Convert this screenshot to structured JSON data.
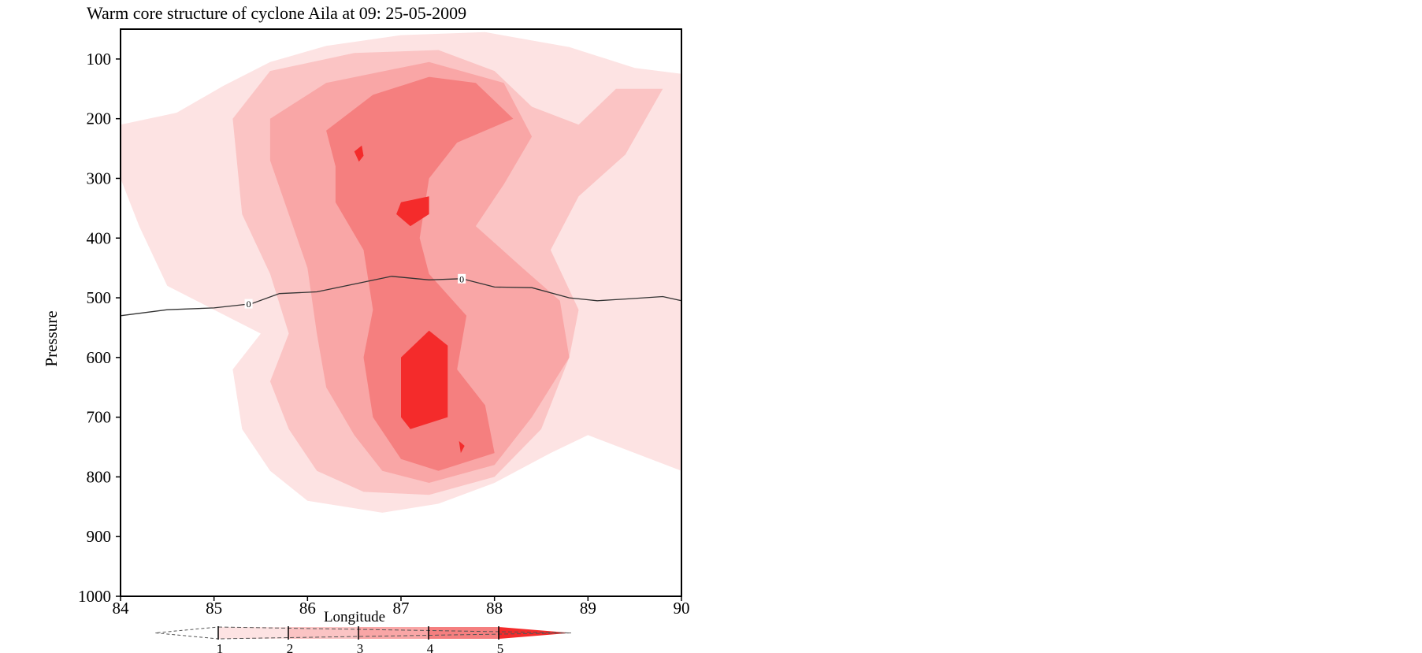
{
  "chart_data": {
    "type": "heatmap",
    "title": "Warm core structure of cyclone Aila at 09: 25-05-2009",
    "xlabel": "Longitude",
    "ylabel": "Pressure",
    "xlim": [
      84,
      90
    ],
    "ylim": [
      1000,
      50
    ],
    "x_ticks": [
      84,
      85,
      86,
      87,
      88,
      89,
      90
    ],
    "y_ticks": [
      100,
      200,
      300,
      400,
      500,
      600,
      700,
      800,
      900,
      1000
    ],
    "y_reversed": true,
    "grid": false,
    "colorbar": {
      "position": "bottom",
      "levels": [
        1,
        2,
        3,
        4,
        5
      ],
      "colors": [
        "#fde3e3",
        "#fbc4c4",
        "#f9a6a6",
        "#f57f7f",
        "#f42b2b"
      ]
    },
    "contour_labels": [
      {
        "text": "0",
        "x": 85.37,
        "p": 510
      },
      {
        "text": "0",
        "x": 87.65,
        "p": 468
      }
    ],
    "filled_regions": [
      {
        "level": 1,
        "points": [
          [
            84,
            210
          ],
          [
            84.6,
            190
          ],
          [
            85.1,
            145
          ],
          [
            85.6,
            105
          ],
          [
            86.2,
            78
          ],
          [
            87.0,
            60
          ],
          [
            87.9,
            55
          ],
          [
            88.8,
            80
          ],
          [
            89.5,
            115
          ],
          [
            90,
            125
          ],
          [
            90,
            790
          ],
          [
            89.0,
            730
          ],
          [
            88.6,
            760
          ],
          [
            88.0,
            810
          ],
          [
            87.4,
            845
          ],
          [
            86.8,
            860
          ],
          [
            86.0,
            840
          ],
          [
            85.6,
            790
          ],
          [
            85.3,
            720
          ],
          [
            85.2,
            620
          ],
          [
            85.5,
            560
          ],
          [
            85.0,
            520
          ],
          [
            84.5,
            480
          ],
          [
            84.2,
            380
          ],
          [
            84,
            300
          ]
        ]
      },
      {
        "level": 2,
        "points": [
          [
            85.2,
            200
          ],
          [
            85.6,
            120
          ],
          [
            86.5,
            90
          ],
          [
            87.4,
            85
          ],
          [
            88.0,
            120
          ],
          [
            88.4,
            180
          ],
          [
            88.9,
            210
          ],
          [
            89.3,
            150
          ],
          [
            89.8,
            150
          ],
          [
            89.4,
            260
          ],
          [
            88.9,
            330
          ],
          [
            88.6,
            420
          ],
          [
            88.9,
            520
          ],
          [
            88.8,
            600
          ],
          [
            88.5,
            720
          ],
          [
            88.0,
            800
          ],
          [
            87.3,
            830
          ],
          [
            86.6,
            825
          ],
          [
            86.1,
            790
          ],
          [
            85.8,
            720
          ],
          [
            85.6,
            640
          ],
          [
            85.8,
            560
          ],
          [
            85.6,
            460
          ],
          [
            85.3,
            360
          ]
        ]
      },
      {
        "level": 3,
        "points": [
          [
            85.6,
            200
          ],
          [
            86.2,
            140
          ],
          [
            87.3,
            105
          ],
          [
            88.1,
            140
          ],
          [
            88.4,
            230
          ],
          [
            88.1,
            310
          ],
          [
            87.8,
            380
          ],
          [
            88.3,
            450
          ],
          [
            88.7,
            505
          ],
          [
            88.8,
            600
          ],
          [
            88.4,
            700
          ],
          [
            88.0,
            780
          ],
          [
            87.3,
            810
          ],
          [
            86.8,
            790
          ],
          [
            86.5,
            730
          ],
          [
            86.2,
            650
          ],
          [
            86.1,
            560
          ],
          [
            86.0,
            450
          ],
          [
            85.8,
            360
          ],
          [
            85.6,
            270
          ]
        ]
      },
      {
        "level": 4,
        "points": [
          [
            86.2,
            220
          ],
          [
            86.7,
            160
          ],
          [
            87.3,
            130
          ],
          [
            87.8,
            140
          ],
          [
            88.2,
            200
          ],
          [
            87.6,
            240
          ],
          [
            87.3,
            300
          ],
          [
            87.2,
            400
          ],
          [
            87.3,
            460
          ],
          [
            87.7,
            530
          ],
          [
            87.6,
            620
          ],
          [
            87.9,
            680
          ],
          [
            88.0,
            760
          ],
          [
            87.4,
            790
          ],
          [
            87.0,
            770
          ],
          [
            86.7,
            700
          ],
          [
            86.6,
            600
          ],
          [
            86.7,
            520
          ],
          [
            86.6,
            420
          ],
          [
            86.3,
            340
          ],
          [
            86.3,
            280
          ]
        ]
      },
      {
        "level": 5,
        "points": [
          [
            87.0,
            600
          ],
          [
            87.3,
            555
          ],
          [
            87.5,
            580
          ],
          [
            87.5,
            700
          ],
          [
            87.1,
            720
          ],
          [
            87.0,
            700
          ],
          [
            87.0,
            640
          ]
        ]
      },
      {
        "level": 5,
        "points": [
          [
            87.0,
            340
          ],
          [
            87.3,
            330
          ],
          [
            87.3,
            360
          ],
          [
            87.1,
            380
          ],
          [
            86.95,
            360
          ]
        ]
      },
      {
        "level": 5,
        "points": [
          [
            86.5,
            255
          ],
          [
            86.58,
            245
          ],
          [
            86.6,
            262
          ],
          [
            86.55,
            272
          ]
        ]
      },
      {
        "level": 5,
        "points": [
          [
            87.62,
            740
          ],
          [
            87.68,
            748
          ],
          [
            87.64,
            760
          ]
        ]
      }
    ],
    "zero_contour": [
      [
        84,
        530
      ],
      [
        84.5,
        520
      ],
      [
        85,
        517
      ],
      [
        85.4,
        510
      ],
      [
        85.7,
        493
      ],
      [
        86.1,
        490
      ],
      [
        86.5,
        477
      ],
      [
        86.9,
        464
      ],
      [
        87.3,
        470
      ],
      [
        87.65,
        468
      ],
      [
        88.0,
        482
      ],
      [
        88.4,
        483
      ],
      [
        88.8,
        500
      ],
      [
        89.1,
        505
      ],
      [
        89.4,
        502
      ],
      [
        89.8,
        498
      ],
      [
        90,
        505
      ]
    ]
  }
}
